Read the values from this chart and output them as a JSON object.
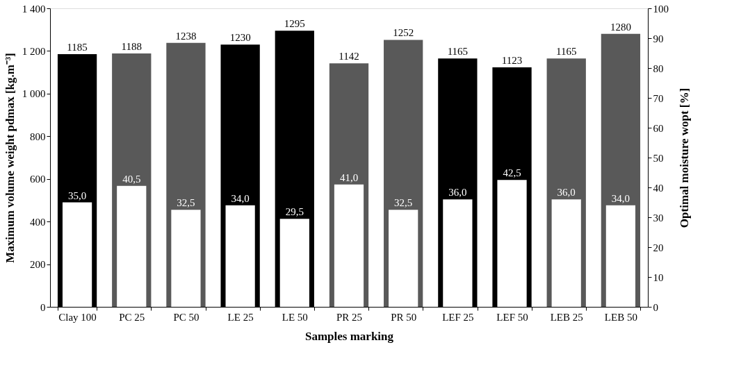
{
  "chart_data": {
    "type": "bar",
    "xlabel": "Samples marking",
    "ylabel": "Maximum volume weight pdmax [kg.m⁻³]",
    "y2label": "Optimal moisture wopt [%]",
    "categories": [
      "Clay 100",
      "PC 25",
      "PC 50",
      "LE 25",
      "LE 50",
      "PR 25",
      "PR 50",
      "LEF 25",
      "LEF 50",
      "LEB 25",
      "LEB 50"
    ],
    "series": [
      {
        "values": [
          1185,
          1188,
          1238,
          1230,
          1295,
          1142,
          1252,
          1165,
          1123,
          1165,
          1280
        ],
        "colors": [
          "#000000",
          "#595959",
          "#595959",
          "#000000",
          "#000000",
          "#595959",
          "#595959",
          "#000000",
          "#000000",
          "#595959",
          "#595959"
        ]
      },
      {
        "axis": "y2",
        "color": "#ffffff",
        "values": [
          35.0,
          40.5,
          32.5,
          34.0,
          29.5,
          41.0,
          32.5,
          36.0,
          42.5,
          36.0,
          34.0
        ],
        "value_labels": [
          "35,0",
          "40,5",
          "32,5",
          "34,0",
          "29,5",
          "41,0",
          "32,5",
          "36,0",
          "42,5",
          "36,0",
          "34,0"
        ]
      }
    ],
    "data_labels": true,
    "ylim": [
      0,
      1400
    ],
    "yticks": [
      0,
      200,
      400,
      600,
      800,
      {
        "value": 1000,
        "label": "1 000"
      },
      {
        "value": 1200,
        "label": "1 200"
      },
      {
        "value": 1400,
        "label": "1 400"
      }
    ],
    "y2lim": [
      0,
      100
    ],
    "y2ticks": [
      0,
      10,
      20,
      30,
      40,
      50,
      60,
      70,
      80,
      90,
      100
    ],
    "grid": false
  }
}
